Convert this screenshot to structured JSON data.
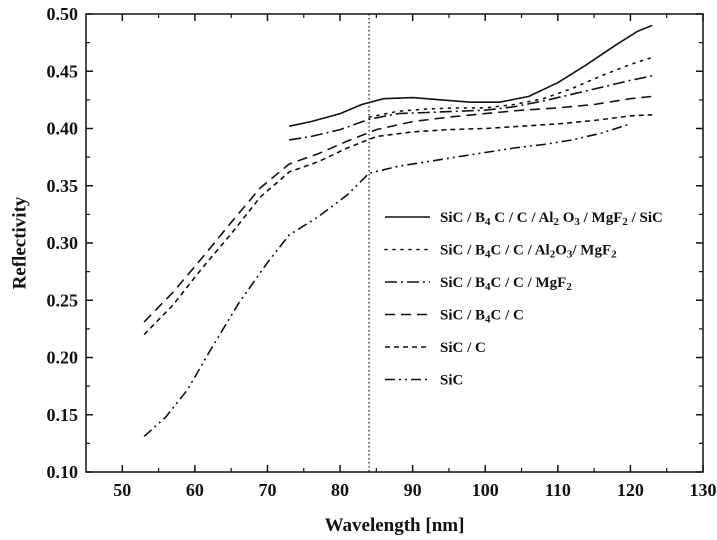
{
  "chart_data": {
    "type": "line",
    "title": "",
    "xlabel": "Wavelength [nm]",
    "ylabel": "Reflectivity",
    "xlim": [
      45,
      130
    ],
    "ylim": [
      0.1,
      0.5
    ],
    "xticks": [
      50,
      60,
      70,
      80,
      90,
      100,
      110,
      120,
      130
    ],
    "yticks": [
      0.1,
      0.15,
      0.2,
      0.25,
      0.3,
      0.35,
      0.4,
      0.45,
      0.5
    ],
    "xtick_labels": [
      "50",
      "60",
      "70",
      "80",
      "90",
      "100",
      "110",
      "120",
      "130"
    ],
    "ytick_labels": [
      "0.10",
      "0.15",
      "0.20",
      "0.25",
      "0.30",
      "0.35",
      "0.40",
      "0.45",
      "0.50"
    ],
    "grid": false,
    "legend_position": "right",
    "reference_line": {
      "x": 84,
      "style": "dotted"
    },
    "series": [
      {
        "name": "SiC/B4C/C/Al2O3/MgF2/SiC",
        "legend": [
          [
            "SiC / B",
            false
          ],
          [
            "4",
            true
          ],
          [
            " C / C / Al",
            false
          ],
          [
            "2",
            true
          ],
          [
            " O",
            false
          ],
          [
            "3",
            true
          ],
          [
            " / MgF",
            false
          ],
          [
            "2",
            true
          ],
          [
            " / SiC",
            false
          ]
        ],
        "dash": "",
        "x": [
          73,
          76,
          80,
          83,
          86,
          90,
          94,
          98,
          102,
          106,
          110,
          114,
          118,
          121,
          123
        ],
        "y": [
          0.402,
          0.406,
          0.413,
          0.421,
          0.426,
          0.427,
          0.425,
          0.423,
          0.423,
          0.428,
          0.44,
          0.456,
          0.473,
          0.485,
          0.49
        ]
      },
      {
        "name": "SiC/B4C/C/Al2O3/MgF2",
        "legend": [
          [
            "SiC / B",
            false
          ],
          [
            "4",
            true
          ],
          [
            "C / C / Al",
            false
          ],
          [
            "2",
            true
          ],
          [
            "O",
            false
          ],
          [
            "3",
            true
          ],
          [
            "/ MgF",
            false
          ],
          [
            "2",
            true
          ]
        ],
        "dash": "2 6",
        "x": [
          84,
          88,
          92,
          96,
          100,
          104,
          108,
          112,
          116,
          120,
          123
        ],
        "y": [
          0.41,
          0.415,
          0.417,
          0.418,
          0.418,
          0.421,
          0.426,
          0.435,
          0.446,
          0.456,
          0.462
        ]
      },
      {
        "name": "SiC/B4C/C/MgF2",
        "legend": [
          [
            "SiC / B",
            false
          ],
          [
            "4",
            true
          ],
          [
            "C / C / MgF",
            false
          ],
          [
            "2",
            true
          ]
        ],
        "dash": "12 4 2 4",
        "x": [
          73,
          76,
          80,
          84,
          88,
          92,
          96,
          100,
          104,
          108,
          112,
          116,
          120,
          123
        ],
        "y": [
          0.39,
          0.393,
          0.399,
          0.408,
          0.413,
          0.414,
          0.415,
          0.416,
          0.419,
          0.424,
          0.43,
          0.436,
          0.442,
          0.446
        ]
      },
      {
        "name": "SiC/B4C/C",
        "legend": [
          [
            "SiC / B",
            false
          ],
          [
            "4",
            true
          ],
          [
            "C / C",
            false
          ],
          [
            "",
            false
          ]
        ],
        "dash": "10 6",
        "x": [
          53,
          57,
          61,
          65,
          69,
          73,
          77,
          81,
          85,
          90,
          95,
          100,
          105,
          110,
          115,
          120,
          123
        ],
        "y": [
          0.231,
          0.257,
          0.287,
          0.318,
          0.348,
          0.369,
          0.378,
          0.389,
          0.399,
          0.406,
          0.41,
          0.413,
          0.416,
          0.418,
          0.421,
          0.426,
          0.428
        ]
      },
      {
        "name": "SiC/C",
        "legend": [
          [
            "SiC / C",
            false
          ]
        ],
        "dash": "5 4",
        "x": [
          53,
          57,
          61,
          65,
          69,
          73,
          77,
          81,
          85,
          90,
          95,
          100,
          105,
          110,
          115,
          120,
          123
        ],
        "y": [
          0.22,
          0.246,
          0.278,
          0.308,
          0.34,
          0.362,
          0.371,
          0.383,
          0.393,
          0.397,
          0.399,
          0.4,
          0.402,
          0.404,
          0.407,
          0.411,
          0.412
        ]
      },
      {
        "name": "SiC",
        "legend": [
          [
            "SiC",
            false
          ]
        ],
        "dash": "10 4 2 4 2 4",
        "x": [
          53,
          56,
          59,
          62,
          66,
          70,
          73,
          77,
          81,
          84,
          88,
          92,
          96,
          100,
          104,
          108,
          112,
          116,
          120
        ],
        "y": [
          0.131,
          0.148,
          0.172,
          0.205,
          0.247,
          0.283,
          0.307,
          0.323,
          0.342,
          0.361,
          0.367,
          0.371,
          0.375,
          0.379,
          0.383,
          0.386,
          0.39,
          0.396,
          0.404
        ]
      }
    ]
  }
}
